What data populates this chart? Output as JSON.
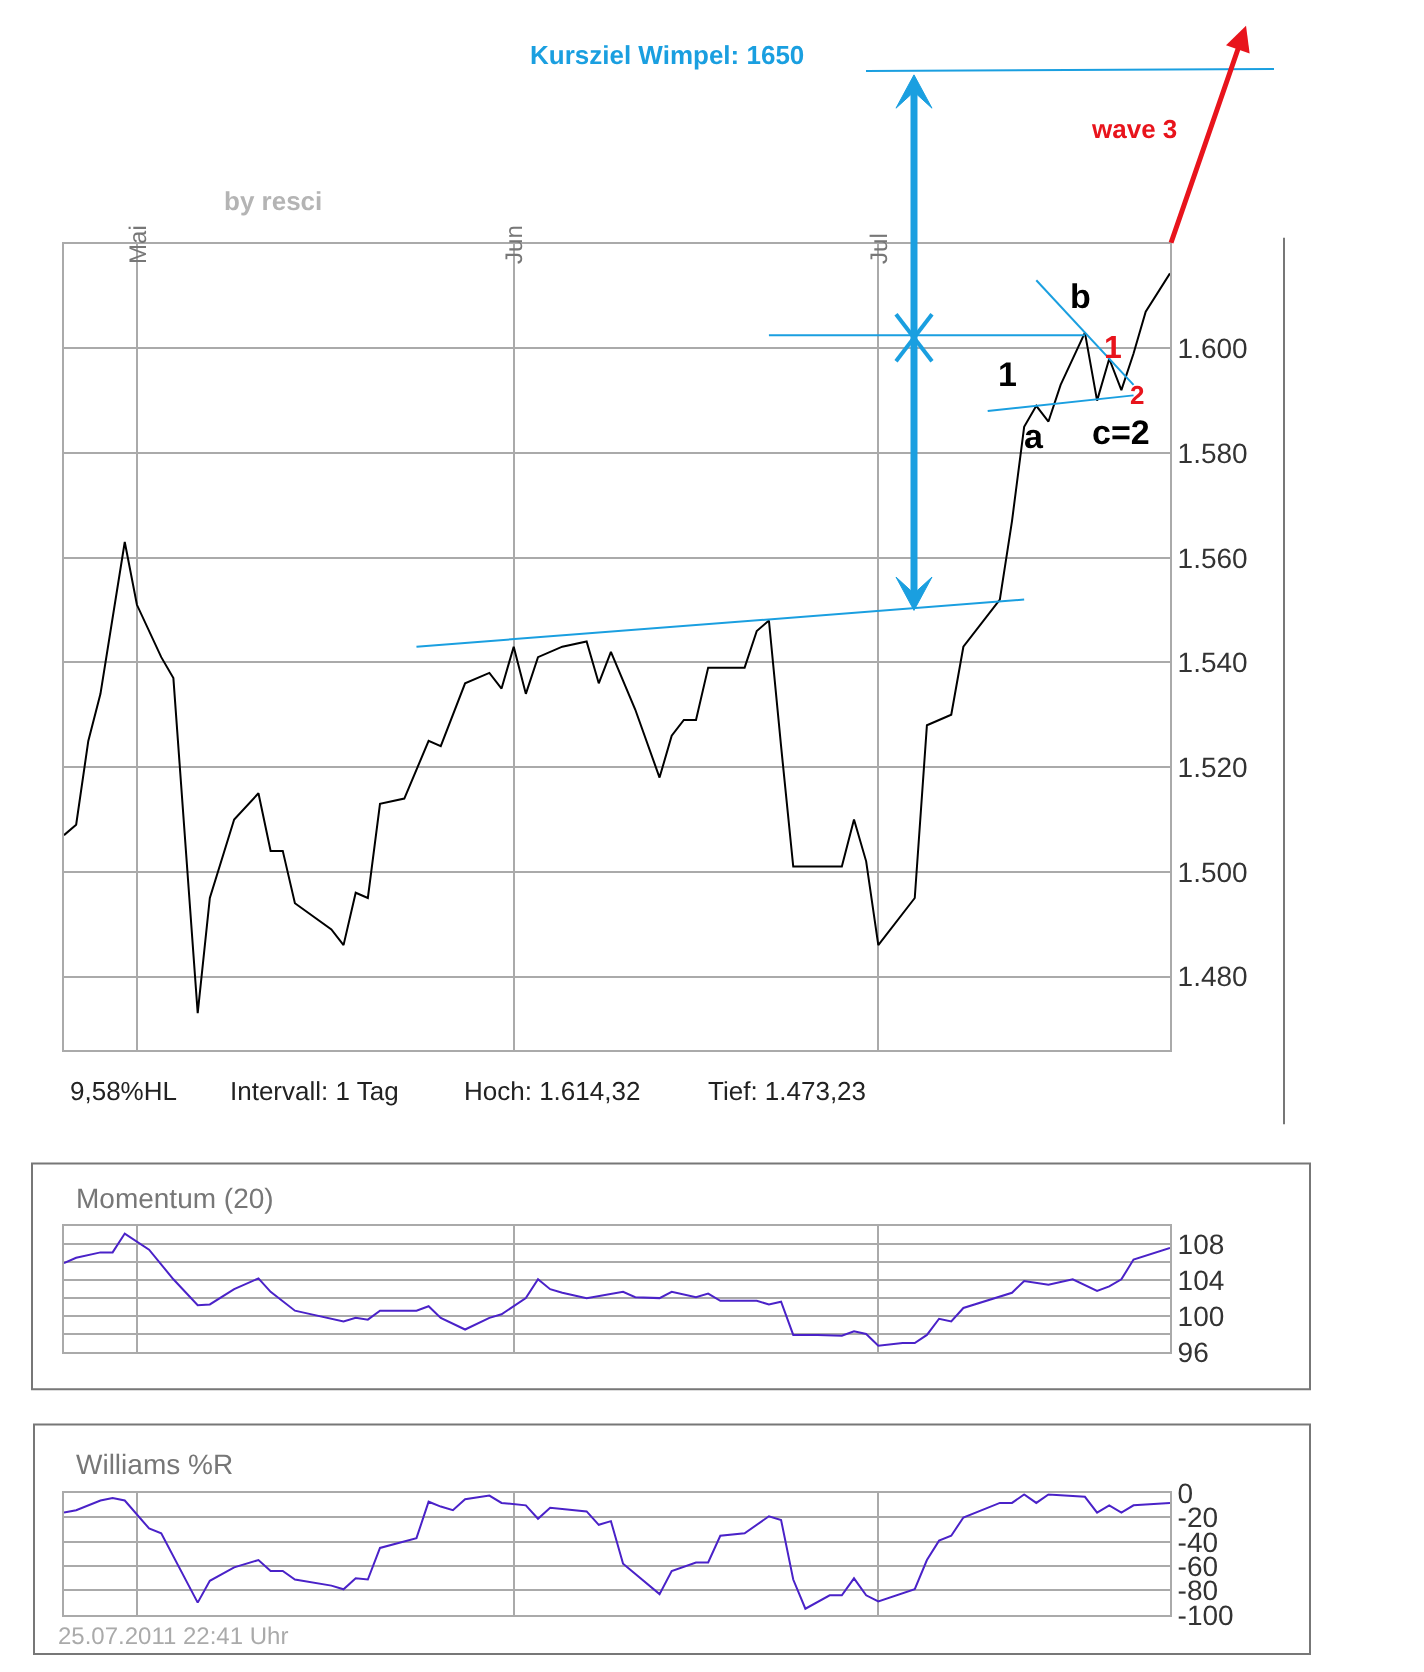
{
  "chart_data": [
    {
      "type": "line",
      "xlim": [
        "2011-04-25",
        "2011-07-25"
      ],
      "ylim": [
        1466,
        1620
      ],
      "xticks": [
        {
          "value": "2011-05-01",
          "label": "Mai"
        },
        {
          "value": "2011-06-01",
          "label": "Jun"
        },
        {
          "value": "2011-07-01",
          "label": "Jul"
        }
      ],
      "yticks": [
        {
          "value": 1480,
          "label": "1.480"
        },
        {
          "value": 1500,
          "label": "1.500"
        },
        {
          "value": 1520,
          "label": "1.520"
        },
        {
          "value": 1540,
          "label": "1.540"
        },
        {
          "value": 1560,
          "label": "1.560"
        },
        {
          "value": 1580,
          "label": "1.580"
        },
        {
          "value": 1600,
          "label": "1.600"
        }
      ],
      "grid": true,
      "series": [
        {
          "color": "#000000",
          "x": [
            "2011-04-25",
            "2011-04-26",
            "2011-04-27",
            "2011-04-28",
            "2011-04-30",
            "2011-05-01",
            "2011-05-03",
            "2011-05-04",
            "2011-05-06",
            "2011-05-07",
            "2011-05-09",
            "2011-05-11",
            "2011-05-12",
            "2011-05-13",
            "2011-05-14",
            "2011-05-17",
            "2011-05-18",
            "2011-05-19",
            "2011-05-20",
            "2011-05-21",
            "2011-05-23",
            "2011-05-25",
            "2011-05-26",
            "2011-05-28",
            "2011-05-30",
            "2011-05-31",
            "2011-06-01",
            "2011-06-02",
            "2011-06-03",
            "2011-06-05",
            "2011-06-07",
            "2011-06-08",
            "2011-06-09",
            "2011-06-11",
            "2011-06-13",
            "2011-06-14",
            "2011-06-15",
            "2011-06-16",
            "2011-06-17",
            "2011-06-20",
            "2011-06-21",
            "2011-06-22",
            "2011-06-23",
            "2011-06-24",
            "2011-06-28",
            "2011-06-29",
            "2011-06-30",
            "2011-07-01",
            "2011-07-04",
            "2011-07-05",
            "2011-07-06",
            "2011-07-07",
            "2011-07-08",
            "2011-07-11",
            "2011-07-12",
            "2011-07-13",
            "2011-07-14",
            "2011-07-15",
            "2011-07-16",
            "2011-07-18",
            "2011-07-19",
            "2011-07-20",
            "2011-07-21",
            "2011-07-22",
            "2011-07-23",
            "2011-07-25"
          ],
          "values": [
            1507,
            1509,
            1525,
            1534,
            1563,
            1551,
            1541,
            1537,
            1473,
            1495,
            1510,
            1515,
            1504,
            1504,
            1494,
            1489,
            1486,
            1496,
            1495,
            1513,
            1514,
            1525,
            1524,
            1536,
            1538,
            1535,
            1543,
            1534,
            1541,
            1543,
            1544,
            1536,
            1542,
            1531,
            1518,
            1526,
            1529,
            1529,
            1539,
            1539,
            1546,
            1548,
            1524,
            1501,
            1501,
            1510,
            1502,
            1486,
            1495,
            1528,
            1529,
            1530,
            1543,
            1552,
            1567,
            1585,
            1589,
            1586,
            1593,
            1603,
            1590,
            1598,
            1592,
            1599,
            1607,
            1614.3
          ]
        },
        {
          "type": "line",
          "color": "#1a9fe0",
          "x": [
            "2011-05-24",
            "2011-07-13"
          ],
          "values": [
            1543,
            1552
          ]
        },
        {
          "type": "line",
          "color": "#1a9fe0",
          "x": [
            "2011-06-22",
            "2011-07-18"
          ],
          "values": [
            1602.5,
            1602.5
          ]
        },
        {
          "type": "line",
          "color": "#1a9fe0",
          "x": [
            "2011-07-14",
            "2011-07-22"
          ],
          "values": [
            1613,
            1593
          ]
        },
        {
          "type": "line",
          "color": "#1a9fe0",
          "x": [
            "2011-07-10",
            "2011-07-22"
          ],
          "values": [
            1588,
            1591
          ]
        }
      ],
      "annotations": [
        "Kursziel Wimpel: 1650",
        "wave 3",
        "by resci",
        "9,58%HL",
        "Intervall: 1 Tag",
        "Hoch: 1.614,32",
        "Tief: 1.473,23",
        "1",
        "a",
        "b",
        "c=2",
        "1",
        "2"
      ]
    },
    {
      "type": "line",
      "title": "Momentum (20)",
      "xlim": [
        "2011-04-25",
        "2011-07-25"
      ],
      "ylim": [
        96,
        110
      ],
      "xticks": [
        {
          "value": "2011-05-01",
          "label": null
        },
        {
          "value": "2011-06-01",
          "label": null
        },
        {
          "value": "2011-07-01",
          "label": null
        }
      ],
      "yticks": [
        96,
        {
          "value": 98,
          "label": null
        },
        100,
        {
          "value": 102,
          "label": null
        },
        104,
        {
          "value": 106,
          "label": null
        },
        108,
        {
          "value": 110,
          "label": null
        }
      ],
      "grid": true,
      "tick_labels": "y",
      "series": [
        {
          "color": "#4a22c8",
          "x": [
            "2011-04-25",
            "2011-04-26",
            "2011-04-28",
            "2011-04-29",
            "2011-04-30",
            "2011-05-02",
            "2011-05-04",
            "2011-05-06",
            "2011-05-07",
            "2011-05-09",
            "2011-05-11",
            "2011-05-12",
            "2011-05-14",
            "2011-05-15",
            "2011-05-18",
            "2011-05-19",
            "2011-05-20",
            "2011-05-21",
            "2011-05-24",
            "2011-05-25",
            "2011-05-26",
            "2011-05-28",
            "2011-05-30",
            "2011-05-31",
            "2011-06-02",
            "2011-06-03",
            "2011-06-04",
            "2011-06-05",
            "2011-06-07",
            "2011-06-10",
            "2011-06-11",
            "2011-06-13",
            "2011-06-14",
            "2011-06-16",
            "2011-06-17",
            "2011-06-18",
            "2011-06-21",
            "2011-06-22",
            "2011-06-23",
            "2011-06-24",
            "2011-06-26",
            "2011-06-28",
            "2011-06-29",
            "2011-06-30",
            "2011-07-01",
            "2011-07-03",
            "2011-07-04",
            "2011-07-05",
            "2011-07-06",
            "2011-07-07",
            "2011-07-08",
            "2011-07-12",
            "2011-07-13",
            "2011-07-15",
            "2011-07-17",
            "2011-07-19",
            "2011-07-20",
            "2011-07-21",
            "2011-07-22",
            "2011-07-25"
          ],
          "values": [
            105.9,
            106.5,
            107.1,
            107.1,
            109.2,
            107.4,
            104.1,
            101.2,
            101.3,
            103,
            104.2,
            102.7,
            100.6,
            100.3,
            99.4,
            99.8,
            99.6,
            100.6,
            100.6,
            101.1,
            99.8,
            98.5,
            99.8,
            100.2,
            102,
            104.1,
            103,
            102.6,
            102,
            102.7,
            102.1,
            102,
            102.7,
            102.1,
            102.5,
            101.7,
            101.7,
            101.3,
            101.6,
            97.9,
            97.9,
            97.8,
            98.3,
            98,
            96.7,
            97,
            97,
            97.9,
            99.7,
            99.4,
            100.9,
            102.6,
            103.9,
            103.5,
            104.1,
            102.8,
            103.3,
            104.1,
            106.3,
            107.6
          ]
        }
      ]
    },
    {
      "type": "line",
      "title": "Williams %R",
      "xlim": [
        "2011-04-25",
        "2011-07-25"
      ],
      "ylim": [
        -100,
        0
      ],
      "xticks": [
        {
          "value": "2011-05-01",
          "label": null
        },
        {
          "value": "2011-06-01",
          "label": null
        },
        {
          "value": "2011-07-01",
          "label": null
        }
      ],
      "yticks": [
        -100,
        -80,
        -60,
        -40,
        -20,
        0
      ],
      "grid": true,
      "tick_labels": "y",
      "series": [
        {
          "color": "#4a22c8",
          "x": [
            "2011-04-25",
            "2011-04-26",
            "2011-04-28",
            "2011-04-29",
            "2011-04-30",
            "2011-05-02",
            "2011-05-03",
            "2011-05-06",
            "2011-05-07",
            "2011-05-09",
            "2011-05-11",
            "2011-05-12",
            "2011-05-13",
            "2011-05-14",
            "2011-05-17",
            "2011-05-18",
            "2011-05-19",
            "2011-05-20",
            "2011-05-21",
            "2011-05-24",
            "2011-05-25",
            "2011-05-26",
            "2011-05-27",
            "2011-05-28",
            "2011-05-30",
            "2011-05-31",
            "2011-06-02",
            "2011-06-03",
            "2011-06-04",
            "2011-06-07",
            "2011-06-08",
            "2011-06-09",
            "2011-06-10",
            "2011-06-13",
            "2011-06-14",
            "2011-06-16",
            "2011-06-17",
            "2011-06-18",
            "2011-06-20",
            "2011-06-22",
            "2011-06-23",
            "2011-06-24",
            "2011-06-25",
            "2011-06-27",
            "2011-06-28",
            "2011-06-29",
            "2011-06-30",
            "2011-07-01",
            "2011-07-04",
            "2011-07-05",
            "2011-07-06",
            "2011-07-07",
            "2011-07-08",
            "2011-07-11",
            "2011-07-12",
            "2011-07-13",
            "2011-07-14",
            "2011-07-15",
            "2011-07-18",
            "2011-07-19",
            "2011-07-20",
            "2011-07-21",
            "2011-07-22",
            "2011-07-25"
          ],
          "values": [
            -16,
            -14,
            -6,
            -4,
            -6,
            -29,
            -33,
            -90,
            -72,
            -61,
            -55,
            -64,
            -64,
            -71,
            -76,
            -79,
            -70,
            -71,
            -45,
            -37,
            -7,
            -11,
            -14,
            -5,
            -2,
            -8,
            -10,
            -21,
            -12,
            -15,
            -26,
            -23,
            -58,
            -83,
            -64,
            -57,
            -57,
            -35,
            -33,
            -19,
            -22,
            -71,
            -95,
            -84,
            -84,
            -70,
            -84,
            -89,
            -79,
            -55,
            -39,
            -35,
            -20,
            -8,
            -8,
            -1,
            -8,
            -1,
            -3,
            -16,
            -10,
            -16,
            -10,
            -8
          ]
        }
      ],
      "annotations": [
        "25.07.2011 22:41 Uhr"
      ]
    }
  ]
}
